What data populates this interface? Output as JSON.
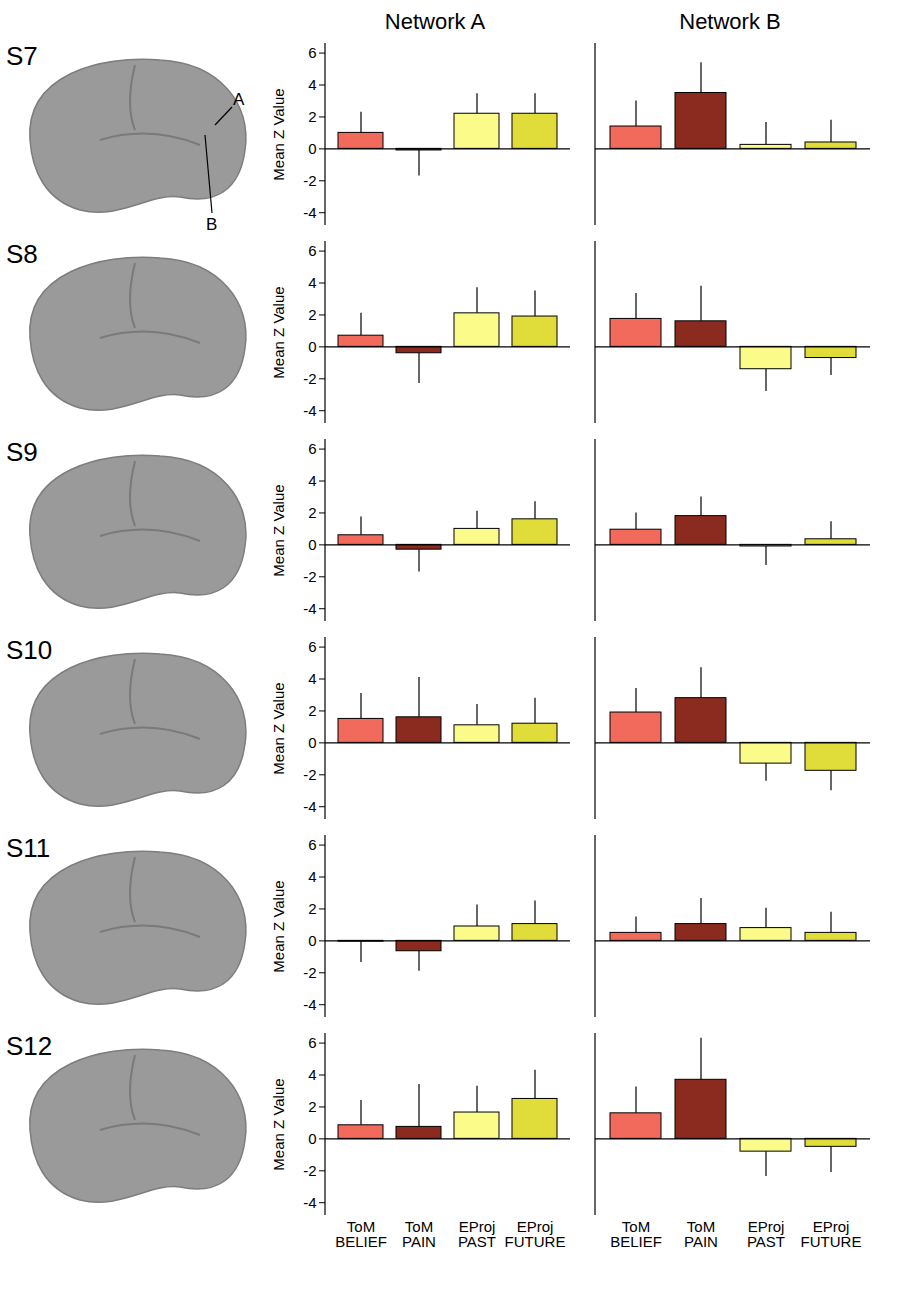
{
  "figure": {
    "column_titles": [
      "Network A",
      "Network B"
    ],
    "row_labels": [
      "S7",
      "S8",
      "S9",
      "S10",
      "S11",
      "S12"
    ],
    "callouts": [
      "A",
      "B"
    ]
  },
  "chart_data": [
    {
      "type": "bar",
      "categories": [
        "ToM BELIEF",
        "ToM PAIN",
        "EProj PAST",
        "EProj FUTURE"
      ],
      "values": [
        1.0,
        -0.1,
        2.2,
        2.2
      ],
      "errors": [
        1.3,
        1.6,
        1.25,
        1.25
      ],
      "colors": [
        "#f26a5b",
        "#8b2a1f",
        "#fbfb8a",
        "#e0dc3a"
      ],
      "ylim": [
        -4.8,
        6.6
      ],
      "yticks": [
        -4,
        -2,
        0,
        2,
        4,
        6
      ],
      "ylabel": "Mean Z Value",
      "tick_labels": "y"
    },
    {
      "type": "bar",
      "categories": [
        "ToM BELIEF",
        "ToM PAIN",
        "EProj PAST",
        "EProj FUTURE"
      ],
      "values": [
        1.4,
        3.5,
        0.25,
        0.4
      ],
      "errors": [
        1.6,
        1.9,
        1.4,
        1.4
      ],
      "colors": [
        "#f26a5b",
        "#8b2a1f",
        "#fbfb8a",
        "#e0dc3a"
      ],
      "ylim": [
        -4.8,
        6.6
      ],
      "tick_labels": false
    },
    {
      "type": "bar",
      "categories": [
        "ToM BELIEF",
        "ToM PAIN",
        "EProj PAST",
        "EProj FUTURE"
      ],
      "values": [
        0.7,
        -0.4,
        2.1,
        1.9
      ],
      "errors": [
        1.4,
        1.9,
        1.6,
        1.6
      ],
      "colors": [
        "#f26a5b",
        "#8b2a1f",
        "#fbfb8a",
        "#e0dc3a"
      ],
      "ylim": [
        -4.8,
        6.6
      ],
      "yticks": [
        -4,
        -2,
        0,
        2,
        4,
        6
      ],
      "ylabel": "Mean Z Value",
      "tick_labels": "y"
    },
    {
      "type": "bar",
      "categories": [
        "ToM BELIEF",
        "ToM PAIN",
        "EProj PAST",
        "EProj FUTURE"
      ],
      "values": [
        1.75,
        1.6,
        -1.4,
        -0.7
      ],
      "errors": [
        1.6,
        2.2,
        1.4,
        1.1
      ],
      "colors": [
        "#f26a5b",
        "#8b2a1f",
        "#fbfb8a",
        "#e0dc3a"
      ],
      "ylim": [
        -4.8,
        6.6
      ],
      "tick_labels": false
    },
    {
      "type": "bar",
      "categories": [
        "ToM BELIEF",
        "ToM PAIN",
        "EProj PAST",
        "EProj FUTURE"
      ],
      "values": [
        0.6,
        -0.3,
        1.0,
        1.6
      ],
      "errors": [
        1.15,
        1.4,
        1.1,
        1.1
      ],
      "colors": [
        "#f26a5b",
        "#8b2a1f",
        "#fbfb8a",
        "#e0dc3a"
      ],
      "ylim": [
        -4.8,
        6.6
      ],
      "yticks": [
        -4,
        -2,
        0,
        2,
        4,
        6
      ],
      "ylabel": "Mean Z Value",
      "tick_labels": "y"
    },
    {
      "type": "bar",
      "categories": [
        "ToM BELIEF",
        "ToM PAIN",
        "EProj PAST",
        "EProj FUTURE"
      ],
      "values": [
        0.95,
        1.8,
        -0.1,
        0.35
      ],
      "errors": [
        1.05,
        1.2,
        1.2,
        1.1
      ],
      "colors": [
        "#f26a5b",
        "#8b2a1f",
        "#fbfb8a",
        "#e0dc3a"
      ],
      "ylim": [
        -4.8,
        6.6
      ],
      "tick_labels": false
    },
    {
      "type": "bar",
      "categories": [
        "ToM BELIEF",
        "ToM PAIN",
        "EProj PAST",
        "EProj FUTURE"
      ],
      "values": [
        1.5,
        1.6,
        1.1,
        1.2
      ],
      "errors": [
        1.6,
        2.5,
        1.3,
        1.6
      ],
      "colors": [
        "#f26a5b",
        "#8b2a1f",
        "#fbfb8a",
        "#e0dc3a"
      ],
      "ylim": [
        -4.8,
        6.6
      ],
      "yticks": [
        -4,
        -2,
        0,
        2,
        4,
        6
      ],
      "ylabel": "Mean Z Value",
      "tick_labels": "y"
    },
    {
      "type": "bar",
      "categories": [
        "ToM BELIEF",
        "ToM PAIN",
        "EProj PAST",
        "EProj FUTURE"
      ],
      "values": [
        1.9,
        2.8,
        -1.3,
        -1.75
      ],
      "errors": [
        1.5,
        1.9,
        1.1,
        1.25
      ],
      "colors": [
        "#f26a5b",
        "#8b2a1f",
        "#fbfb8a",
        "#e0dc3a"
      ],
      "ylim": [
        -4.8,
        6.6
      ],
      "tick_labels": false
    },
    {
      "type": "bar",
      "categories": [
        "ToM BELIEF",
        "ToM PAIN",
        "EProj PAST",
        "EProj FUTURE"
      ],
      "values": [
        -0.05,
        -0.65,
        0.9,
        1.05
      ],
      "errors": [
        1.3,
        1.25,
        1.35,
        1.45
      ],
      "colors": [
        "#f26a5b",
        "#8b2a1f",
        "#fbfb8a",
        "#e0dc3a"
      ],
      "ylim": [
        -4.8,
        6.6
      ],
      "yticks": [
        -4,
        -2,
        0,
        2,
        4,
        6
      ],
      "ylabel": "Mean Z Value",
      "tick_labels": "y"
    },
    {
      "type": "bar",
      "categories": [
        "ToM BELIEF",
        "ToM PAIN",
        "EProj PAST",
        "EProj FUTURE"
      ],
      "values": [
        0.5,
        1.05,
        0.8,
        0.5
      ],
      "errors": [
        1.0,
        1.6,
        1.25,
        1.3
      ],
      "colors": [
        "#f26a5b",
        "#8b2a1f",
        "#fbfb8a",
        "#e0dc3a"
      ],
      "ylim": [
        -4.8,
        6.6
      ],
      "tick_labels": false
    },
    {
      "type": "bar",
      "categories": [
        "ToM BELIEF",
        "ToM PAIN",
        "EProj PAST",
        "EProj FUTURE"
      ],
      "values": [
        0.85,
        0.75,
        1.65,
        2.5
      ],
      "errors": [
        1.55,
        2.65,
        1.65,
        1.8
      ],
      "colors": [
        "#f26a5b",
        "#8b2a1f",
        "#fbfb8a",
        "#e0dc3a"
      ],
      "ylim": [
        -4.8,
        6.6
      ],
      "yticks": [
        -4,
        -2,
        0,
        2,
        4,
        6
      ],
      "ylabel": "Mean Z Value",
      "tick_labels": true
    },
    {
      "type": "bar",
      "categories": [
        "ToM BELIEF",
        "ToM PAIN",
        "EProj PAST",
        "EProj FUTURE"
      ],
      "values": [
        1.6,
        3.7,
        -0.8,
        -0.5
      ],
      "errors": [
        1.65,
        2.6,
        1.55,
        1.6
      ],
      "colors": [
        "#f26a5b",
        "#8b2a1f",
        "#fbfb8a",
        "#e0dc3a"
      ],
      "ylim": [
        -4.8,
        6.6
      ],
      "tick_labels": "x"
    }
  ]
}
